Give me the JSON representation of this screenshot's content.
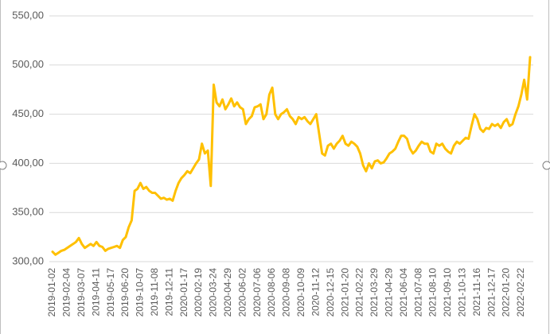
{
  "chart_data": {
    "type": "line",
    "categories": [
      "2019-01-02",
      null,
      null,
      null,
      null,
      "2019-02-04",
      null,
      null,
      null,
      null,
      "2019-03-07",
      null,
      null,
      null,
      null,
      "2019-04-11",
      null,
      null,
      null,
      null,
      "2019-05-17",
      null,
      null,
      null,
      null,
      "2019-06-20",
      null,
      null,
      null,
      null,
      "2019-10-07",
      null,
      null,
      null,
      null,
      "2019-11-08",
      null,
      null,
      null,
      null,
      "2019-12-11",
      null,
      null,
      null,
      null,
      "2020-01-17",
      null,
      null,
      null,
      null,
      "2020-02-19",
      null,
      null,
      null,
      null,
      "2020-03-24",
      null,
      null,
      null,
      null,
      "2020-04-29",
      null,
      null,
      null,
      null,
      "2020-06-02",
      null,
      null,
      null,
      null,
      "2020-07-06",
      null,
      null,
      null,
      null,
      "2020-08-06",
      null,
      null,
      null,
      null,
      "2020-09-08",
      null,
      null,
      null,
      null,
      "2020-10-09",
      null,
      null,
      null,
      null,
      "2020-11-12",
      null,
      null,
      null,
      null,
      "2020-12-15",
      null,
      null,
      null,
      null,
      "2021-01-20",
      null,
      null,
      null,
      null,
      "2021-02-22",
      null,
      null,
      null,
      null,
      "2021-03-29",
      null,
      null,
      null,
      null,
      "2021-04-29",
      null,
      null,
      null,
      null,
      "2021-06-04",
      null,
      null,
      null,
      null,
      "2021-07-08",
      null,
      null,
      null,
      null,
      "2021-08-10",
      null,
      null,
      null,
      null,
      "2021-09-10",
      null,
      null,
      null,
      null,
      "2021-10-13",
      null,
      null,
      null,
      null,
      "2021-11-16",
      null,
      null,
      null,
      null,
      "2021-12-17",
      null,
      null,
      null,
      null,
      "2022-01-20",
      null,
      null,
      null,
      null,
      "2022-02-22",
      null,
      null,
      null
    ],
    "values": [
      310,
      307,
      309,
      311,
      312,
      314,
      316,
      318,
      320,
      324,
      318,
      314,
      316,
      318,
      316,
      320,
      316,
      315,
      311,
      313,
      314,
      315,
      316,
      314,
      322,
      325,
      335,
      342,
      372,
      374,
      380,
      374,
      376,
      372,
      370,
      370,
      367,
      364,
      365,
      363,
      364,
      362,
      372,
      380,
      385,
      388,
      392,
      390,
      395,
      400,
      404,
      420,
      410,
      413,
      377,
      480,
      462,
      458,
      465,
      455,
      460,
      466,
      458,
      462,
      457,
      455,
      440,
      445,
      448,
      457,
      458,
      460,
      445,
      450,
      470,
      477,
      450,
      445,
      450,
      452,
      455,
      448,
      445,
      440,
      447,
      445,
      447,
      443,
      440,
      445,
      450,
      430,
      410,
      408,
      418,
      420,
      415,
      420,
      423,
      428,
      420,
      418,
      422,
      420,
      417,
      410,
      398,
      392,
      400,
      395,
      402,
      403,
      400,
      401,
      405,
      410,
      412,
      415,
      422,
      428,
      428,
      425,
      415,
      410,
      413,
      418,
      422,
      420,
      420,
      412,
      410,
      420,
      418,
      420,
      415,
      412,
      410,
      418,
      422,
      420,
      423,
      426,
      425,
      438,
      450,
      445,
      435,
      432,
      436,
      435,
      440,
      438,
      440,
      436,
      442,
      445,
      438,
      440,
      450,
      458,
      470,
      485,
      465,
      508
    ],
    "color": "#ffc000",
    "ylim": [
      300,
      550
    ],
    "yticks": [
      {
        "value": 300,
        "label": "300,00"
      },
      {
        "value": 350,
        "label": "350,00"
      },
      {
        "value": 400,
        "label": "400,00"
      },
      {
        "value": 450,
        "label": "450,00"
      },
      {
        "value": 500,
        "label": "500,00"
      },
      {
        "value": 550,
        "label": "550,00"
      }
    ],
    "grid": true
  }
}
